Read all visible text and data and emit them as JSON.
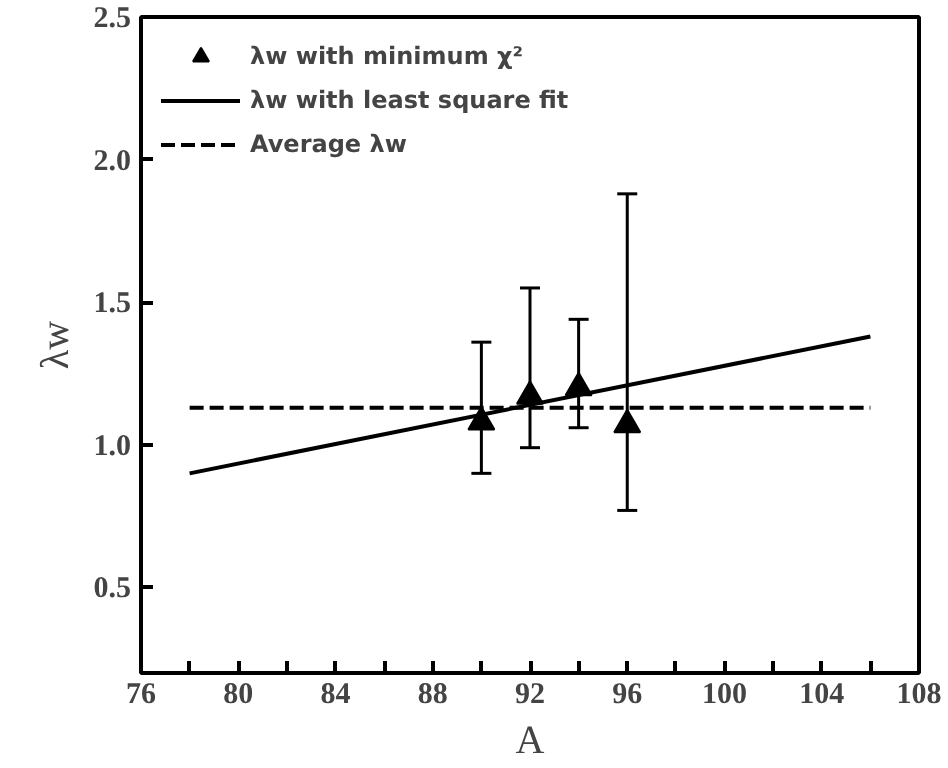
{
  "chart_data": {
    "type": "scatter",
    "xlabel": "A",
    "ylabel": "λw",
    "series": [
      {
        "name": "λw with minimum χ²",
        "color": "#000000",
        "marker": "triangle",
        "x": [
          90,
          92,
          94,
          96
        ],
        "values": [
          1.08,
          1.17,
          1.2,
          1.07
        ],
        "errors": [
          [
            0.9,
            1.36
          ],
          [
            0.99,
            1.55
          ],
          [
            1.06,
            1.44
          ],
          [
            0.77,
            1.88
          ]
        ]
      },
      {
        "name": "λw with least square fit",
        "type": "line",
        "color": "#000000",
        "line_style": "solid",
        "x": [
          78,
          106
        ],
        "values": [
          0.9,
          1.38
        ]
      },
      {
        "name": "Average λw",
        "type": "line",
        "color": "#000000",
        "line_style": "dashed",
        "x": [
          78,
          106
        ],
        "values": [
          1.13,
          1.13
        ]
      }
    ],
    "xlim": [
      76,
      108
    ],
    "ylim": [
      0.2,
      2.5
    ],
    "xticks": [
      76,
      {
        "value": 78,
        "label": null
      },
      80,
      {
        "value": 82,
        "label": null
      },
      84,
      {
        "value": 86,
        "label": null
      },
      88,
      {
        "value": 90,
        "label": null
      },
      92,
      {
        "value": 94,
        "label": null
      },
      96,
      {
        "value": 98,
        "label": null
      },
      100,
      {
        "value": 102,
        "label": null
      },
      104,
      {
        "value": 106,
        "label": null
      },
      108
    ],
    "yticks": [
      0.5,
      {
        "value": 1,
        "label": "1.0"
      },
      1.5,
      {
        "value": 2,
        "label": "2.0"
      },
      2.5
    ],
    "grid": false,
    "legend": "top left"
  }
}
